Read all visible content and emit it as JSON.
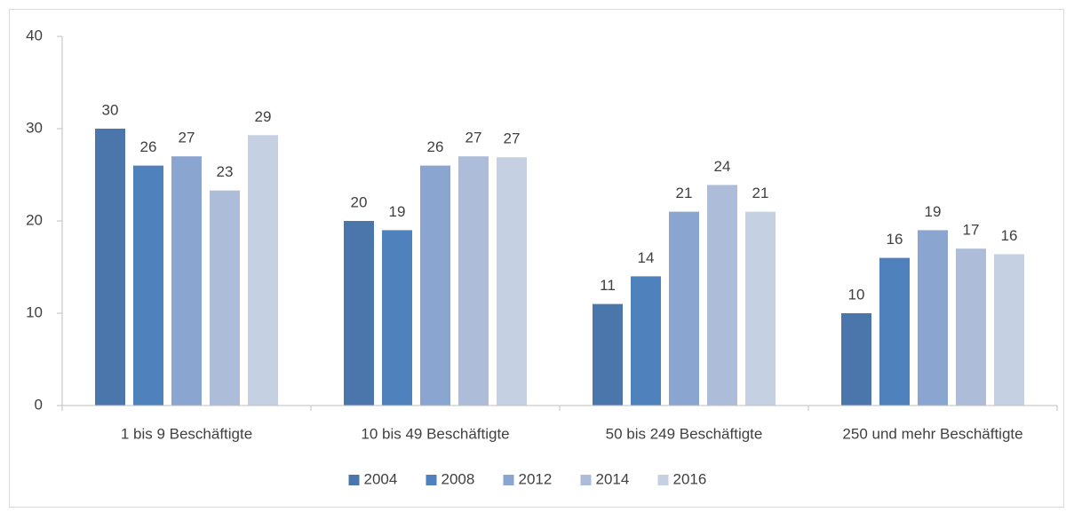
{
  "chart_data": {
    "type": "bar",
    "categories": [
      "1 bis 9 Beschäftigte",
      "10 bis 49 Beschäftigte",
      "50 bis 249 Beschäftigte",
      "250 und mehr Beschäftigte"
    ],
    "series": [
      {
        "name": "2004",
        "color": "#4a76ac",
        "values": [
          30,
          20,
          11,
          10
        ],
        "value_labels": [
          "30",
          "20",
          "11",
          "10"
        ]
      },
      {
        "name": "2008",
        "color": "#4f81bd",
        "values": [
          26,
          19,
          14,
          16
        ],
        "value_labels": [
          "26",
          "19",
          "14",
          "16"
        ]
      },
      {
        "name": "2012",
        "color": "#8aa5cf",
        "values": [
          27,
          26,
          21,
          19
        ],
        "value_labels": [
          "27",
          "26",
          "21",
          "19"
        ]
      },
      {
        "name": "2014",
        "color": "#adbcd9",
        "values": [
          23.3,
          27,
          23.9,
          17
        ],
        "value_labels": [
          "23",
          "27",
          "24",
          "17"
        ]
      },
      {
        "name": "2016",
        "color": "#c6d0e3",
        "values": [
          29.3,
          26.9,
          21,
          16.4
        ],
        "value_labels": [
          "29",
          "27",
          "21",
          "16"
        ]
      }
    ],
    "ylim": [
      0,
      40
    ],
    "yticks": [
      0,
      10,
      20,
      30,
      40
    ],
    "grid": false,
    "legend": "bottom"
  }
}
